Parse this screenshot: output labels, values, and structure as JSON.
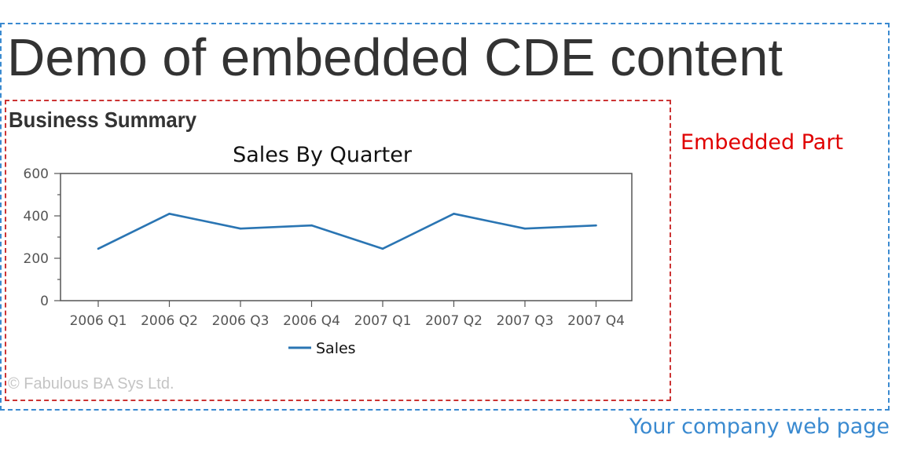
{
  "page": {
    "title": "Demo of embedded CDE content",
    "caption": "Your company web page"
  },
  "embed": {
    "label": "Embedded Part",
    "heading": "Business Summary",
    "copyright": "© Fabulous BA Sys Ltd."
  },
  "colors": {
    "outer_frame": "#3a8ad0",
    "embed_frame": "#cc3333",
    "embed_label": "#e00000",
    "series": "#2a75b3"
  },
  "chart_data": {
    "type": "line",
    "title": "Sales By Quarter",
    "xlabel": "",
    "ylabel": "",
    "categories": [
      "2006 Q1",
      "2006 Q2",
      "2006 Q3",
      "2006 Q4",
      "2007 Q1",
      "2007 Q2",
      "2007 Q3",
      "2007 Q4"
    ],
    "series": [
      {
        "name": "Sales",
        "values": [
          245,
          410,
          340,
          355,
          245,
          410,
          340,
          355
        ]
      }
    ],
    "ylim": [
      0,
      600
    ],
    "yticks": [
      "0",
      "200",
      "400",
      "600"
    ],
    "grid": false,
    "legend": "bottom"
  }
}
